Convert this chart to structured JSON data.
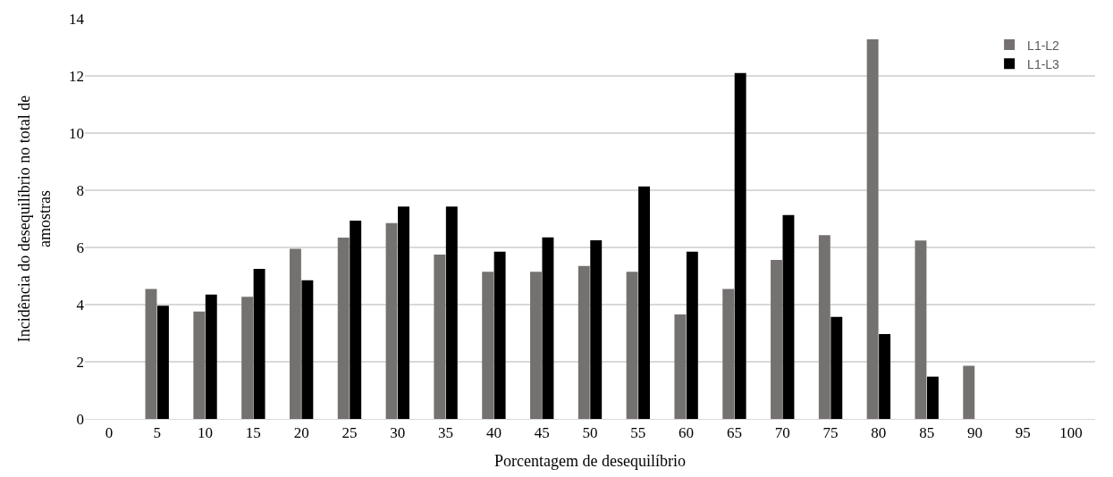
{
  "chart_data": {
    "type": "bar",
    "xlabel": "Porcentagem de desequilíbrio",
    "ylabel": "Incidência do desequilíbrio no total de amostras",
    "categories": [
      "0",
      "5",
      "10",
      "15",
      "20",
      "25",
      "30",
      "35",
      "40",
      "45",
      "50",
      "55",
      "60",
      "65",
      "70",
      "75",
      "80",
      "85",
      "90",
      "95",
      "100"
    ],
    "series": [
      {
        "name": "L1-L2",
        "color": "#767171",
        "values": [
          null,
          4.55,
          3.76,
          4.27,
          5.95,
          6.34,
          6.85,
          5.75,
          5.15,
          5.15,
          5.35,
          5.15,
          3.66,
          4.55,
          5.56,
          6.43,
          13.28,
          6.24,
          1.86,
          null,
          null
        ]
      },
      {
        "name": "L1-L3",
        "color": "#000000",
        "values": [
          null,
          3.96,
          4.35,
          5.25,
          4.85,
          6.94,
          7.43,
          7.43,
          5.85,
          6.35,
          6.25,
          8.13,
          5.85,
          12.1,
          7.13,
          3.57,
          2.97,
          1.48,
          null,
          null,
          null
        ]
      }
    ],
    "ylim": [
      0,
      14
    ],
    "yticks": [
      0,
      2,
      4,
      6,
      8,
      10,
      12,
      14
    ],
    "grid": "y",
    "legend": "top right"
  }
}
